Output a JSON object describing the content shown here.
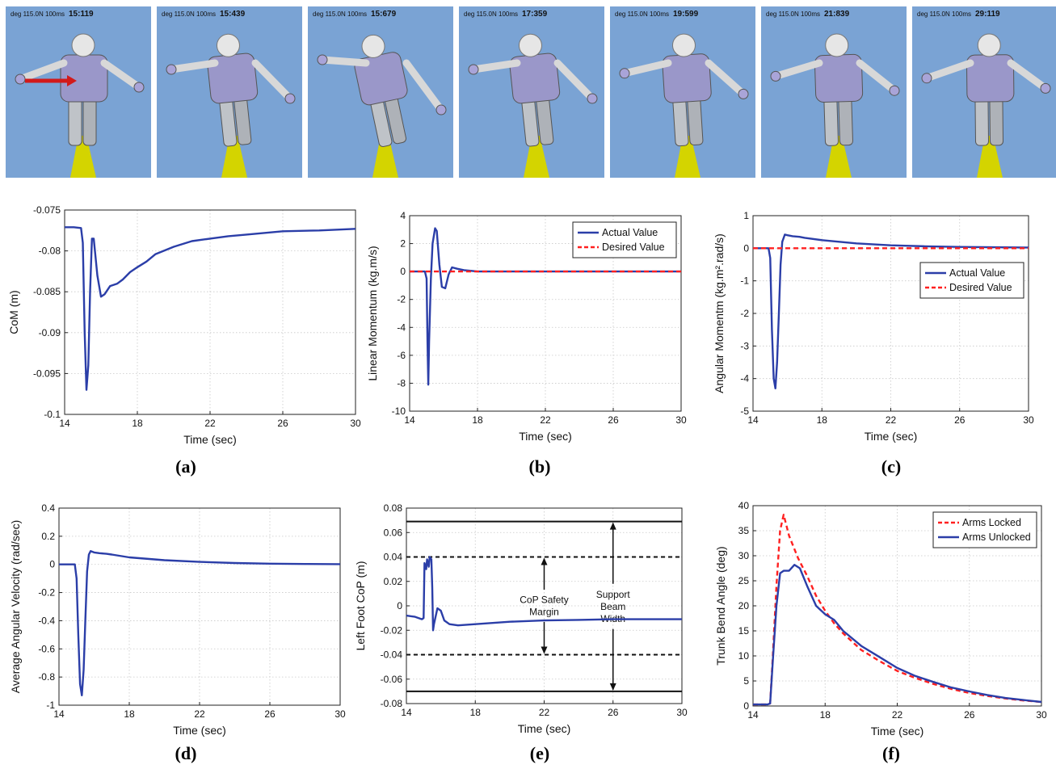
{
  "frames": [
    {
      "caption": "deg 115.0N 100ms",
      "time": "15:119",
      "arrow": true,
      "lean": 0
    },
    {
      "caption": "deg 115.0N 100ms",
      "time": "15:439",
      "arrow": false,
      "lean": 1
    },
    {
      "caption": "deg 115.0N 100ms",
      "time": "15:679",
      "arrow": false,
      "lean": 2
    },
    {
      "caption": "deg 115.0N 100ms",
      "time": "17:359",
      "arrow": false,
      "lean": 1
    },
    {
      "caption": "deg 115.0N 100ms",
      "time": "19:599",
      "arrow": false,
      "lean": 0.6
    },
    {
      "caption": "deg 115.0N 100ms",
      "time": "21:839",
      "arrow": false,
      "lean": 0.3
    },
    {
      "caption": "deg 115.0N 100ms",
      "time": "29:119",
      "arrow": false,
      "lean": 0.1
    }
  ],
  "colors": {
    "actual": "#2b3ea8",
    "desired": "#ff2020",
    "sky": "#7aa3d4"
  },
  "chart_data": [
    {
      "id": "a",
      "type": "line",
      "panel_label": "(a)",
      "xlabel": "Time (sec)",
      "ylabel": "CoM (m)",
      "xlim": [
        14,
        30
      ],
      "ylim": [
        -0.1,
        -0.075
      ],
      "xticks": [
        14,
        18,
        22,
        26,
        30
      ],
      "yticks": [
        -0.1,
        -0.095,
        -0.09,
        -0.085,
        -0.08,
        -0.075
      ],
      "ytick_labels": [
        "-0.1",
        "-0.095",
        "-0.09",
        "-0.085",
        "-0.08",
        "-0.075"
      ],
      "legend": [],
      "series": [
        {
          "color": "actual",
          "dash": false,
          "x": [
            14,
            14.5,
            14.9,
            15.0,
            15.1,
            15.2,
            15.3,
            15.4,
            15.5,
            15.6,
            15.8,
            16.0,
            16.2,
            16.5,
            16.9,
            17.2,
            17.6,
            18.0,
            18.5,
            19,
            20,
            21,
            22,
            23,
            24,
            26,
            28,
            30
          ],
          "y": [
            -0.0771,
            -0.0771,
            -0.0772,
            -0.079,
            -0.09,
            -0.097,
            -0.094,
            -0.085,
            -0.0785,
            -0.0785,
            -0.083,
            -0.0856,
            -0.0853,
            -0.0843,
            -0.084,
            -0.0835,
            -0.0826,
            -0.082,
            -0.0813,
            -0.0804,
            -0.0795,
            -0.0788,
            -0.0785,
            -0.0782,
            -0.078,
            -0.0776,
            -0.0775,
            -0.0773
          ]
        }
      ],
      "annotations": [],
      "hlines": []
    },
    {
      "id": "b",
      "type": "line",
      "panel_label": "(b)",
      "xlabel": "Time (sec)",
      "ylabel": "Linear Momentum (kg.m/s)",
      "xlim": [
        14,
        30
      ],
      "ylim": [
        -10,
        4
      ],
      "xticks": [
        14,
        18,
        22,
        26,
        30
      ],
      "yticks": [
        -10,
        -8,
        -6,
        -4,
        -2,
        0,
        2,
        4
      ],
      "ytick_labels": [
        "-10",
        "-8",
        "-6",
        "-4",
        "-2",
        "0",
        "2",
        "4"
      ],
      "legend": [
        {
          "label": "Actual Value",
          "color": "actual",
          "dash": false
        },
        {
          "label": "Desired Value",
          "color": "desired",
          "dash": true
        }
      ],
      "legend_position": "top-right",
      "series": [
        {
          "color": "actual",
          "dash": false,
          "x": [
            14,
            14.9,
            15.0,
            15.05,
            15.1,
            15.15,
            15.25,
            15.35,
            15.5,
            15.6,
            15.75,
            15.9,
            16.1,
            16.3,
            16.5,
            16.8,
            17.2,
            18,
            20,
            24,
            30
          ],
          "y": [
            0,
            0,
            -0.5,
            -5,
            -8.1,
            -5,
            -0.5,
            2,
            3.1,
            2.9,
            0.5,
            -1.1,
            -1.2,
            -0.2,
            0.3,
            0.2,
            0.1,
            0,
            0,
            0,
            0
          ]
        },
        {
          "color": "desired",
          "dash": true,
          "x": [
            14,
            30
          ],
          "y": [
            0,
            0
          ]
        }
      ],
      "annotations": [],
      "hlines": []
    },
    {
      "id": "c",
      "type": "line",
      "panel_label": "(c)",
      "xlabel": "Time (sec)",
      "ylabel": "Angular Momentm (kg.m².rad/s)",
      "xlim": [
        14,
        30
      ],
      "ylim": [
        -5,
        1
      ],
      "xticks": [
        14,
        18,
        22,
        26,
        30
      ],
      "yticks": [
        -5,
        -4,
        -3,
        -2,
        -1,
        0,
        1
      ],
      "ytick_labels": [
        "-5",
        "-4",
        "-3",
        "-2",
        "-1",
        "0",
        "1"
      ],
      "legend": [
        {
          "label": "Actual Value",
          "color": "actual",
          "dash": false
        },
        {
          "label": "Desired Value",
          "color": "desired",
          "dash": true
        }
      ],
      "legend_position": "center-right",
      "series": [
        {
          "color": "actual",
          "dash": false,
          "x": [
            14,
            14.9,
            15.0,
            15.1,
            15.2,
            15.3,
            15.4,
            15.5,
            15.6,
            15.7,
            15.85,
            16.0,
            16.3,
            16.7,
            17.0,
            18,
            20,
            22,
            24,
            26,
            28,
            30
          ],
          "y": [
            0,
            0,
            -0.3,
            -2.5,
            -4.0,
            -4.3,
            -3.5,
            -2.0,
            -0.5,
            0.2,
            0.42,
            0.4,
            0.37,
            0.35,
            0.32,
            0.25,
            0.15,
            0.09,
            0.06,
            0.04,
            0.03,
            0.02
          ]
        },
        {
          "color": "desired",
          "dash": true,
          "x": [
            14,
            30
          ],
          "y": [
            0,
            0
          ]
        }
      ],
      "annotations": [],
      "hlines": []
    },
    {
      "id": "d",
      "type": "line",
      "panel_label": "(d)",
      "xlabel": "Time (sec)",
      "ylabel": "Average Angular Velocity (rad/sec)",
      "xlim": [
        14,
        30
      ],
      "ylim": [
        -1,
        0.4
      ],
      "xticks": [
        14,
        18,
        22,
        26,
        30
      ],
      "yticks": [
        -1,
        -0.8,
        -0.6,
        -0.4,
        -0.2,
        0,
        0.2,
        0.4
      ],
      "ytick_labels": [
        "-1",
        "-0.8",
        "-0.6",
        "-0.4",
        "-0.2",
        "0",
        "0.2",
        "0.4"
      ],
      "legend": [],
      "series": [
        {
          "color": "actual",
          "dash": false,
          "x": [
            14,
            14.9,
            15.0,
            15.1,
            15.2,
            15.3,
            15.4,
            15.5,
            15.6,
            15.7,
            15.8,
            16.0,
            16.3,
            16.7,
            17,
            18,
            20,
            22,
            24,
            26,
            28,
            30
          ],
          "y": [
            0,
            0,
            -0.1,
            -0.5,
            -0.85,
            -0.93,
            -0.75,
            -0.4,
            -0.05,
            0.07,
            0.095,
            0.085,
            0.08,
            0.075,
            0.07,
            0.05,
            0.03,
            0.018,
            0.01,
            0.005,
            0.003,
            0.002
          ]
        }
      ],
      "annotations": [],
      "hlines": []
    },
    {
      "id": "e",
      "type": "line",
      "panel_label": "(e)",
      "xlabel": "Time (sec)",
      "ylabel": "Left Foot CoP (m)",
      "xlim": [
        14,
        30
      ],
      "ylim": [
        -0.08,
        0.08
      ],
      "xticks": [
        14,
        18,
        22,
        26,
        30
      ],
      "yticks": [
        -0.08,
        -0.06,
        -0.04,
        -0.02,
        0,
        0.02,
        0.04,
        0.06,
        0.08
      ],
      "ytick_labels": [
        "-0.08",
        "-0.06",
        "-0.04",
        "-0.02",
        "0",
        "0.02",
        "0.04",
        "0.06",
        "0.08"
      ],
      "legend": [],
      "series": [
        {
          "color": "actual",
          "dash": false,
          "x": [
            14,
            14.5,
            14.9,
            15.0,
            15.05,
            15.15,
            15.2,
            15.3,
            15.35,
            15.45,
            15.5,
            15.55,
            15.6,
            15.8,
            16.0,
            16.2,
            16.5,
            17,
            17.5,
            18,
            20,
            22,
            24,
            26,
            28,
            30
          ],
          "y": [
            -0.008,
            -0.009,
            -0.011,
            -0.01,
            0.035,
            0.03,
            0.038,
            0.032,
            0.04,
            0.038,
            0.015,
            -0.02,
            -0.015,
            -0.002,
            -0.004,
            -0.012,
            -0.015,
            -0.016,
            -0.0155,
            -0.015,
            -0.013,
            -0.012,
            -0.0115,
            -0.011,
            -0.011,
            -0.011
          ]
        }
      ],
      "hlines": [
        {
          "y": 0.069,
          "style": "solid"
        },
        {
          "y": -0.07,
          "style": "solid"
        },
        {
          "y": 0.04,
          "style": "dashed"
        },
        {
          "y": -0.04,
          "style": "dashed"
        }
      ],
      "annotations": [
        {
          "lines": [
            "CoP Safety",
            "Margin"
          ],
          "x": 22,
          "y_from": 0.04,
          "y_to": -0.04
        },
        {
          "lines": [
            "Support",
            "Beam",
            "Width"
          ],
          "x": 26,
          "y_from": 0.069,
          "y_to": -0.07
        }
      ]
    },
    {
      "id": "f",
      "type": "line",
      "panel_label": "(f)",
      "xlabel": "Time (sec)",
      "ylabel": "Trunk Bend Angle (deg)",
      "xlim": [
        14,
        30
      ],
      "ylim": [
        0,
        40
      ],
      "xticks": [
        14,
        18,
        22,
        26,
        30
      ],
      "yticks": [
        0,
        5,
        10,
        15,
        20,
        25,
        30,
        35,
        40
      ],
      "ytick_labels": [
        "0",
        "5",
        "10",
        "15",
        "20",
        "25",
        "30",
        "35",
        "40"
      ],
      "legend": [
        {
          "label": "Arms Locked",
          "color": "desired",
          "dash": true
        },
        {
          "label": "Arms Unlocked",
          "color": "actual",
          "dash": false
        }
      ],
      "legend_position": "top-right",
      "series": [
        {
          "color": "desired",
          "dash": true,
          "x": [
            14,
            14.8,
            14.95,
            15.1,
            15.3,
            15.5,
            15.7,
            16.0,
            16.5,
            17,
            17.5,
            18,
            18.5,
            19,
            20,
            21,
            22,
            23,
            24,
            25,
            26,
            27,
            28,
            29,
            30
          ],
          "y": [
            0.3,
            0.3,
            0.5,
            10,
            24,
            35,
            38.2,
            34,
            29.5,
            26,
            22,
            19,
            16.5,
            14.5,
            11.2,
            9,
            7,
            5.6,
            4.4,
            3.4,
            2.6,
            2,
            1.5,
            1.1,
            0.8
          ]
        },
        {
          "color": "actual",
          "dash": false,
          "x": [
            14,
            14.8,
            14.95,
            15.1,
            15.3,
            15.5,
            15.7,
            16.0,
            16.3,
            16.6,
            17,
            17.5,
            18,
            18.5,
            19,
            20,
            21,
            22,
            23,
            24,
            25,
            26,
            27,
            28,
            29,
            30
          ],
          "y": [
            0.3,
            0.3,
            0.5,
            9,
            20,
            26.5,
            27,
            27,
            28.2,
            27.5,
            24,
            20,
            18.3,
            17.2,
            15,
            12,
            9.8,
            7.6,
            6,
            4.8,
            3.7,
            2.9,
            2.2,
            1.6,
            1.2,
            0.8
          ]
        }
      ],
      "annotations": [],
      "hlines": []
    }
  ]
}
